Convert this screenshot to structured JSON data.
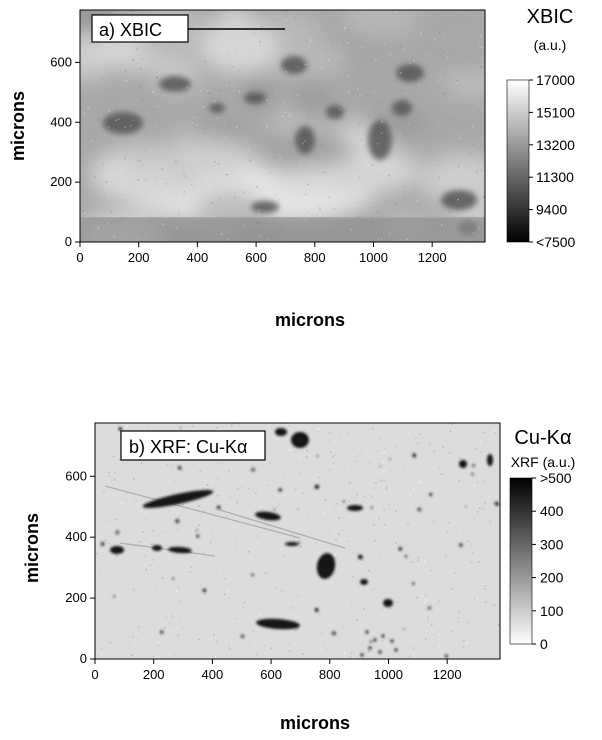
{
  "chart_data": [
    {
      "type": "heatmap",
      "panel_label": "a) XBIC",
      "xlabel": "microns",
      "ylabel": "microns",
      "xlim": [
        0,
        1380
      ],
      "ylim": [
        0,
        775
      ],
      "x_ticks": [
        "0",
        "200",
        "400",
        "600",
        "800",
        "1000",
        "1200"
      ],
      "y_ticks": [
        "0",
        "200",
        "400",
        "600"
      ],
      "colorbar": {
        "title": "XBIC",
        "unit": "(a.u.)",
        "range": [
          7500,
          17000
        ],
        "tick_labels": [
          "17000",
          "15100",
          "13200",
          "11300",
          "9400",
          "<7500"
        ],
        "colormap": "grayscale (white = high, black = low)"
      }
    },
    {
      "type": "heatmap",
      "panel_label": "b) XRF: Cu-Kα",
      "xlabel": "microns",
      "ylabel": "microns",
      "xlim": [
        0,
        1380
      ],
      "ylim": [
        0,
        775
      ],
      "x_ticks": [
        "0",
        "200",
        "400",
        "600",
        "800",
        "1000",
        "1200"
      ],
      "y_ticks": [
        "0",
        "200",
        "400",
        "600"
      ],
      "colorbar": {
        "title": "Cu-Kα",
        "unit": "XRF (a.u.)",
        "range": [
          0,
          500
        ],
        "tick_labels": [
          ">500",
          "400",
          "300",
          "200",
          "100",
          "0"
        ],
        "colormap": "grayscale (black = high, white = low)"
      }
    }
  ]
}
